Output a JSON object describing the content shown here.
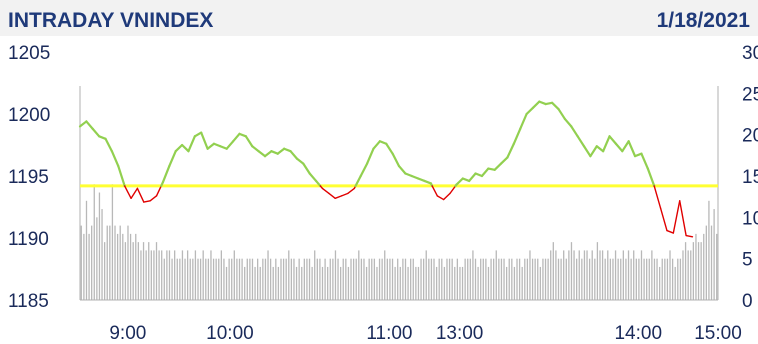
{
  "header": {
    "title": "INTRADAY VNINDEX",
    "date": "1/18/2021"
  },
  "colors": {
    "above_line": "#92d050",
    "below_line": "#e00000",
    "reference_line": "#ffff33",
    "volume_bars": "#b8b8b8",
    "text": "#1a2a5a",
    "header_text": "#1f3a7a"
  },
  "chart_data": {
    "type": "line",
    "title": "INTRADAY VNINDEX",
    "xlabel": "",
    "ylabel": "",
    "reference_value": 1194.2,
    "ylim": [
      1185,
      1205
    ],
    "yticks": [
      1185,
      1190,
      1195,
      1200,
      1205
    ],
    "y2ticks": [
      "0",
      "5",
      "10",
      "15",
      "20",
      "25",
      "30"
    ],
    "y2lim": [
      0,
      30
    ],
    "xlim": [
      0,
      100
    ],
    "xticks": [
      {
        "pos": 7.5,
        "label": "9:00"
      },
      {
        "pos": 23.5,
        "label": "10:00"
      },
      {
        "pos": 48.5,
        "label": "11:00"
      },
      {
        "pos": 59.5,
        "label": "13:00"
      },
      {
        "pos": 87.5,
        "label": "14:00"
      },
      {
        "pos": 100,
        "label": "15:00"
      }
    ],
    "series": [
      {
        "values": [
          [
            0,
            1199.0
          ],
          [
            1,
            1199.4
          ],
          [
            2,
            1198.8
          ],
          [
            3,
            1198.2
          ],
          [
            4,
            1198.0
          ],
          [
            5,
            1197.0
          ],
          [
            6,
            1195.8
          ],
          [
            7,
            1194.2
          ],
          [
            8,
            1193.2
          ],
          [
            9,
            1194.0
          ],
          [
            10,
            1192.9
          ],
          [
            11,
            1193.0
          ],
          [
            12,
            1193.4
          ],
          [
            13,
            1194.5
          ],
          [
            14,
            1195.8
          ],
          [
            15,
            1197.0
          ],
          [
            16,
            1197.5
          ],
          [
            17,
            1197.0
          ],
          [
            18,
            1198.2
          ],
          [
            19,
            1198.5
          ],
          [
            20,
            1197.2
          ],
          [
            21,
            1197.6
          ],
          [
            22,
            1197.4
          ],
          [
            23,
            1197.2
          ],
          [
            24,
            1197.8
          ],
          [
            25,
            1198.4
          ],
          [
            26,
            1198.2
          ],
          [
            27,
            1197.4
          ],
          [
            28,
            1197.0
          ],
          [
            29,
            1196.6
          ],
          [
            30,
            1197.0
          ],
          [
            31,
            1196.8
          ],
          [
            32,
            1197.2
          ],
          [
            33,
            1197.0
          ],
          [
            34,
            1196.4
          ],
          [
            35,
            1196.0
          ],
          [
            36,
            1195.2
          ],
          [
            37,
            1194.6
          ],
          [
            38,
            1194.0
          ],
          [
            39,
            1193.6
          ],
          [
            40,
            1193.2
          ],
          [
            41,
            1193.4
          ],
          [
            42,
            1193.6
          ],
          [
            43,
            1194.0
          ],
          [
            44,
            1195.0
          ],
          [
            45,
            1196.0
          ],
          [
            46,
            1197.2
          ],
          [
            47,
            1197.8
          ],
          [
            48,
            1197.6
          ],
          [
            49,
            1196.8
          ],
          [
            50,
            1195.8
          ],
          [
            51,
            1195.2
          ],
          [
            52,
            1195.0
          ],
          [
            53,
            1194.8
          ],
          [
            54,
            1194.6
          ],
          [
            55,
            1194.4
          ],
          [
            56,
            1193.4
          ],
          [
            57,
            1193.1
          ],
          [
            58,
            1193.6
          ],
          [
            59,
            1194.3
          ],
          [
            60,
            1194.8
          ],
          [
            61,
            1194.6
          ],
          [
            62,
            1195.2
          ],
          [
            63,
            1195.0
          ],
          [
            64,
            1195.6
          ],
          [
            65,
            1195.5
          ],
          [
            66,
            1196.0
          ],
          [
            67,
            1196.5
          ],
          [
            68,
            1197.6
          ],
          [
            69,
            1198.8
          ],
          [
            70,
            1200.0
          ],
          [
            71,
            1200.5
          ],
          [
            72,
            1201.0
          ],
          [
            73,
            1200.8
          ],
          [
            74,
            1200.9
          ],
          [
            75,
            1200.4
          ],
          [
            76,
            1199.6
          ],
          [
            77,
            1199.0
          ],
          [
            78,
            1198.2
          ],
          [
            79,
            1197.4
          ],
          [
            80,
            1196.6
          ],
          [
            81,
            1197.4
          ],
          [
            82,
            1197.0
          ],
          [
            83,
            1198.2
          ],
          [
            84,
            1197.6
          ],
          [
            85,
            1197.0
          ],
          [
            86,
            1197.8
          ],
          [
            87,
            1196.6
          ],
          [
            88,
            1196.8
          ],
          [
            89,
            1195.6
          ],
          [
            90,
            1194.2
          ],
          [
            91,
            1192.4
          ],
          [
            92,
            1190.6
          ],
          [
            93,
            1190.4
          ],
          [
            94,
            1193.0
          ],
          [
            95,
            1190.2
          ],
          [
            96,
            1190.1
          ]
        ]
      }
    ],
    "volume": [
      9,
      8,
      12,
      8,
      9,
      14,
      10,
      13,
      11,
      7,
      9,
      9,
      14,
      9,
      8,
      9,
      8,
      7,
      9,
      8,
      7,
      8,
      7,
      6,
      7,
      6,
      7,
      6,
      6,
      7,
      6,
      6,
      5,
      6,
      6,
      5,
      6,
      5,
      5,
      6,
      5,
      6,
      5,
      5,
      6,
      5,
      5,
      6,
      5,
      5,
      6,
      5,
      5,
      5,
      6,
      5,
      4,
      5,
      5,
      6,
      5,
      5,
      5,
      4,
      5,
      5,
      5,
      4,
      5,
      4,
      5,
      5,
      6,
      5,
      4,
      5,
      4,
      5,
      5,
      5,
      6,
      5,
      5,
      4,
      5,
      4,
      5,
      5,
      5,
      4,
      6,
      5,
      5,
      4,
      5,
      4,
      5,
      5,
      6,
      5,
      4,
      5,
      5,
      4,
      5,
      5,
      5,
      6,
      5,
      5,
      4,
      5,
      5,
      5,
      4,
      5,
      5,
      6,
      5,
      5,
      5,
      4,
      5,
      4,
      5,
      5,
      4,
      5,
      5,
      4,
      4,
      5,
      5,
      6,
      5,
      5,
      5,
      4,
      5,
      5,
      4,
      5,
      5,
      5,
      4,
      5,
      4,
      4,
      5,
      5,
      5,
      6,
      5,
      4,
      5,
      5,
      5,
      4,
      5,
      5,
      6,
      5,
      5,
      5,
      4,
      5,
      5,
      4,
      5,
      5,
      4,
      5,
      5,
      6,
      5,
      5,
      5,
      4,
      5,
      5,
      5,
      6,
      7,
      6,
      5,
      5,
      6,
      5,
      6,
      7,
      6,
      5,
      6,
      5,
      6,
      6,
      5,
      6,
      5,
      7,
      6,
      6,
      5,
      6,
      5,
      5,
      6,
      5,
      5,
      6,
      5,
      6,
      5,
      6,
      5,
      5,
      6,
      5,
      5,
      5,
      6,
      5,
      5,
      4,
      5,
      5,
      5,
      6,
      5,
      4,
      5,
      5,
      6,
      7,
      6,
      6,
      7,
      8,
      7,
      7,
      8,
      9,
      12,
      9,
      11,
      8
    ]
  }
}
